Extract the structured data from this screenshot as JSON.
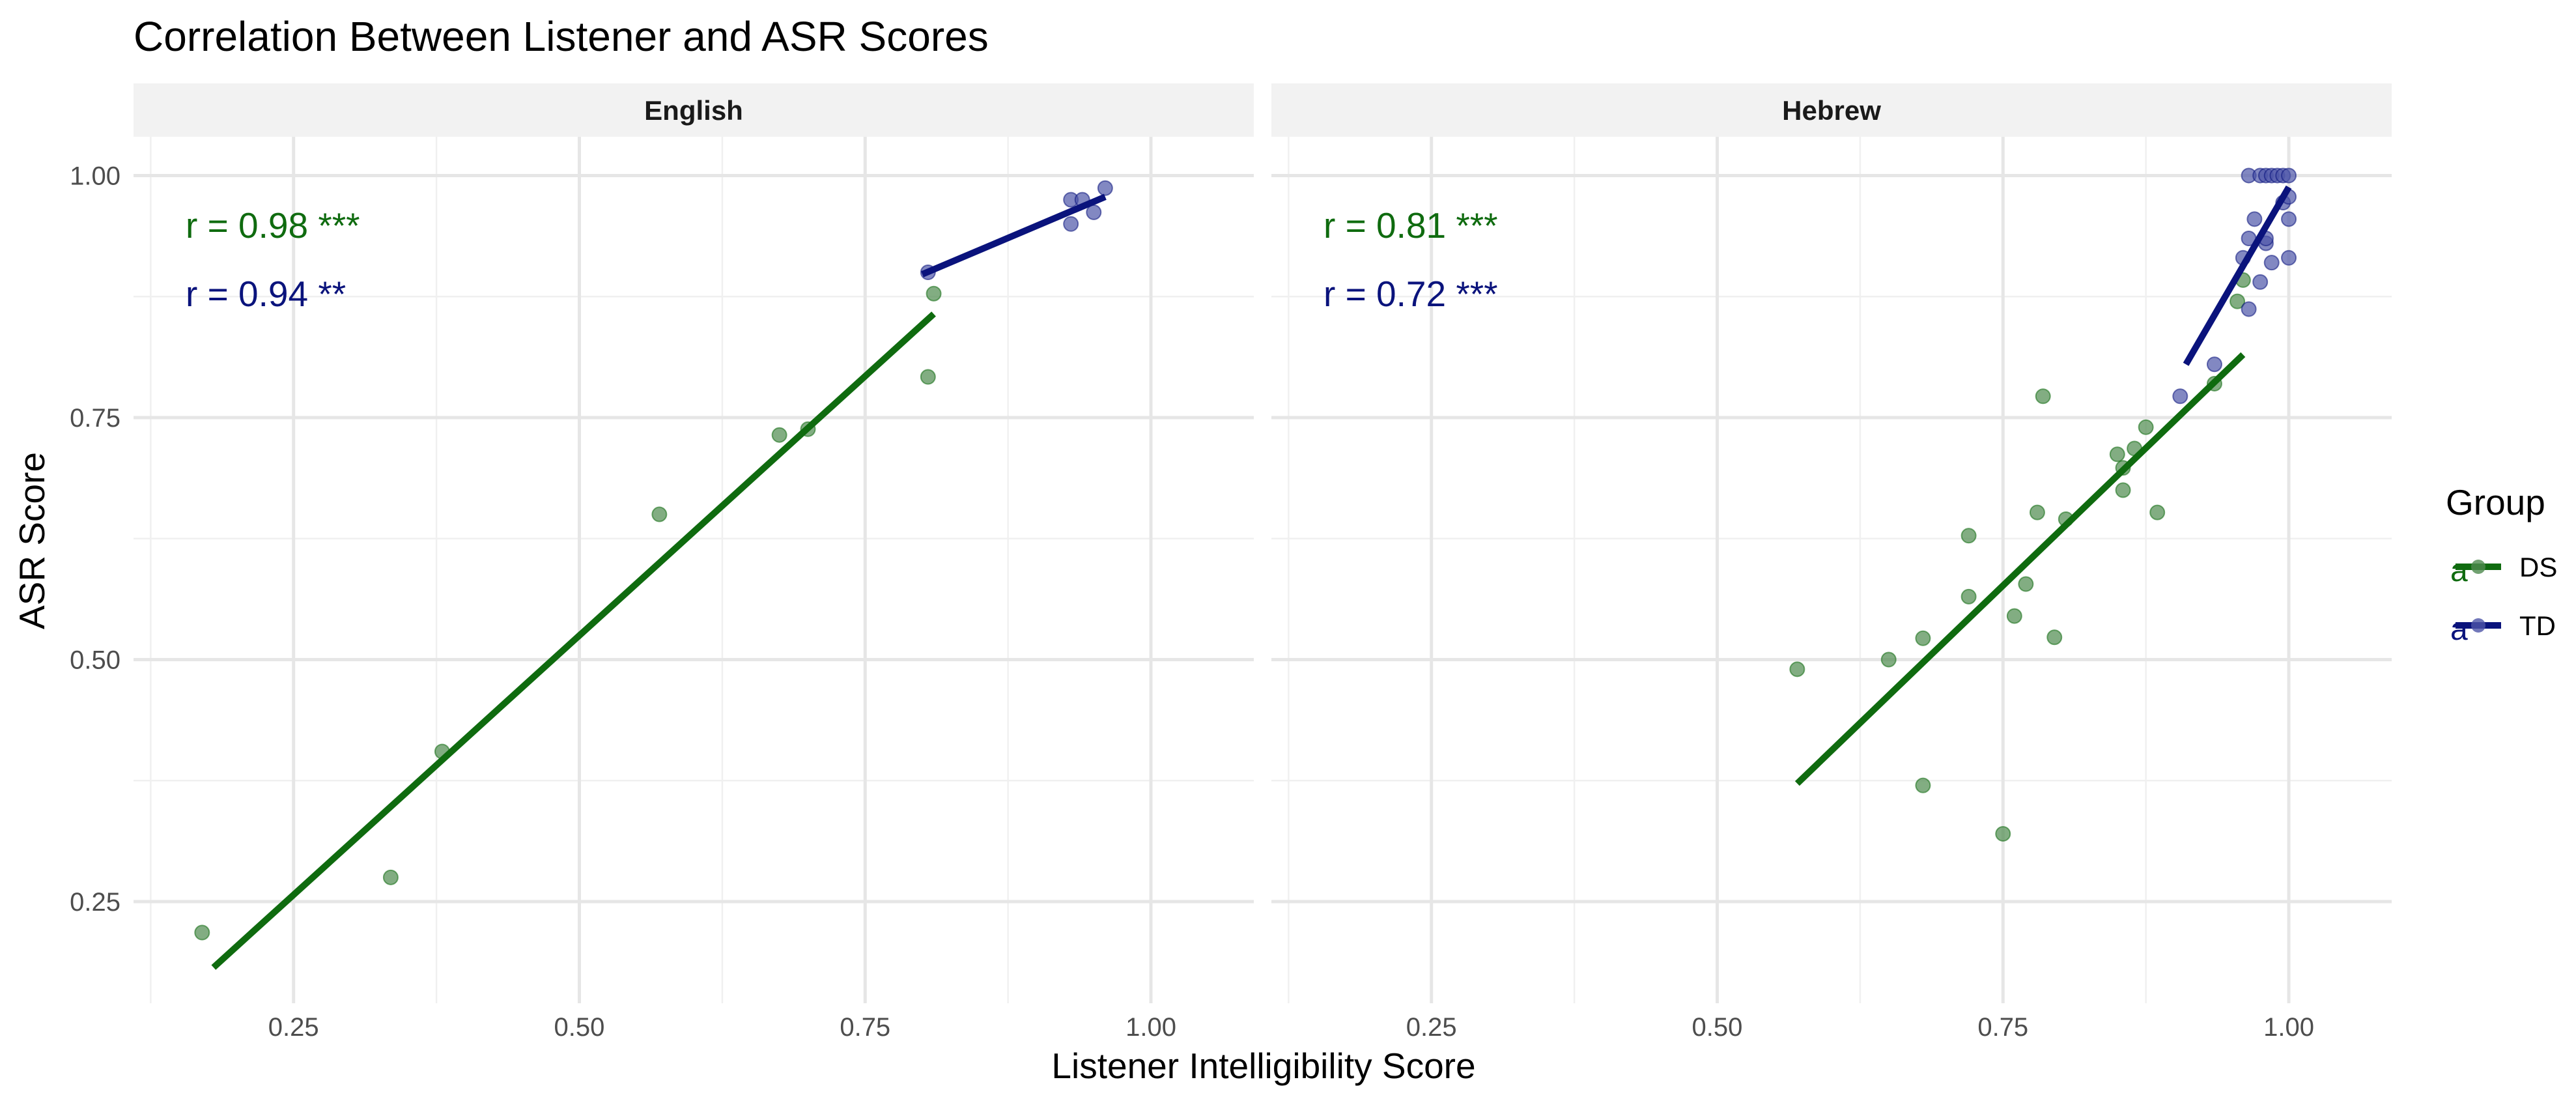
{
  "chart_data": {
    "type": "scatter",
    "title": "Correlation Between Listener and ASR Scores",
    "xlabel": "Listener Intelligibility Score",
    "ylabel": "ASR Score",
    "xlim": [
      0.11,
      1.09
    ],
    "ylim": [
      0.145,
      1.04
    ],
    "x_ticks": [
      0.25,
      0.5,
      0.75,
      1.0
    ],
    "x_tick_labels": [
      "0.25",
      "0.50",
      "0.75",
      "1.00"
    ],
    "y_ticks": [
      0.25,
      0.5,
      0.75,
      1.0
    ],
    "y_tick_labels": [
      "0.25",
      "0.50",
      "0.75",
      "1.00"
    ],
    "grid": true,
    "legend": {
      "title": "Group",
      "position": "right",
      "glyph": "a",
      "entries": [
        {
          "label": "DS",
          "color": "#0f6b0f"
        },
        {
          "label": "TD",
          "color": "#0a137c"
        }
      ]
    },
    "colors": {
      "DS": "#0f6b0f",
      "TD": "#0a137c",
      "DS_point": "#4d8a4d",
      "TD_point": "#4d55a8"
    },
    "panels": [
      {
        "label": "English",
        "annotations": [
          {
            "group": "DS",
            "text": "r = 0.98 ***"
          },
          {
            "group": "TD",
            "text": "r = 0.94 **"
          }
        ],
        "series": [
          {
            "name": "DS",
            "points": [
              [
                0.17,
                0.218
              ],
              [
                0.335,
                0.275
              ],
              [
                0.38,
                0.405
              ],
              [
                0.57,
                0.65
              ],
              [
                0.675,
                0.732
              ],
              [
                0.7,
                0.738
              ],
              [
                0.805,
                0.792
              ],
              [
                0.81,
                0.878
              ]
            ],
            "fit": [
              [
                0.18,
                0.182
              ],
              [
                0.81,
                0.857
              ]
            ]
          },
          {
            "name": "TD",
            "points": [
              [
                0.805,
                0.9
              ],
              [
                0.93,
                0.975
              ],
              [
                0.93,
                0.95
              ],
              [
                0.94,
                0.975
              ],
              [
                0.95,
                0.962
              ],
              [
                0.96,
                0.987
              ]
            ],
            "fit": [
              [
                0.8,
                0.898
              ],
              [
                0.96,
                0.978
              ]
            ]
          }
        ]
      },
      {
        "label": "Hebrew",
        "annotations": [
          {
            "group": "DS",
            "text": "r = 0.81 ***"
          },
          {
            "group": "TD",
            "text": "r = 0.72 ***"
          }
        ],
        "series": [
          {
            "name": "DS",
            "points": [
              [
                0.57,
                0.49
              ],
              [
                0.65,
                0.5
              ],
              [
                0.68,
                0.522
              ],
              [
                0.68,
                0.37
              ],
              [
                0.72,
                0.628
              ],
              [
                0.72,
                0.565
              ],
              [
                0.75,
                0.32
              ],
              [
                0.76,
                0.545
              ],
              [
                0.77,
                0.578
              ],
              [
                0.78,
                0.652
              ],
              [
                0.785,
                0.772
              ],
              [
                0.795,
                0.523
              ],
              [
                0.805,
                0.645
              ],
              [
                0.85,
                0.712
              ],
              [
                0.855,
                0.675
              ],
              [
                0.855,
                0.698
              ],
              [
                0.865,
                0.718
              ],
              [
                0.875,
                0.74
              ],
              [
                0.885,
                0.652
              ],
              [
                0.935,
                0.785
              ],
              [
                0.955,
                0.87
              ],
              [
                0.96,
                0.892
              ]
            ],
            "fit": [
              [
                0.57,
                0.372
              ],
              [
                0.96,
                0.815
              ]
            ]
          },
          {
            "name": "TD",
            "points": [
              [
                0.905,
                0.772
              ],
              [
                0.935,
                0.805
              ],
              [
                0.96,
                0.915
              ],
              [
                0.965,
                0.862
              ],
              [
                0.965,
                0.935
              ],
              [
                0.97,
                0.955
              ],
              [
                0.975,
                0.89
              ],
              [
                0.98,
                0.93
              ],
              [
                0.98,
                0.935
              ],
              [
                0.985,
                0.91
              ],
              [
                0.995,
                0.972
              ],
              [
                1.0,
                0.915
              ],
              [
                1.0,
                0.955
              ],
              [
                1.0,
                0.978
              ],
              [
                0.965,
                1.0
              ],
              [
                0.975,
                1.0
              ],
              [
                0.98,
                1.0
              ],
              [
                0.985,
                1.0
              ],
              [
                0.99,
                1.0
              ],
              [
                0.995,
                1.0
              ],
              [
                1.0,
                1.0
              ]
            ],
            "fit": [
              [
                0.91,
                0.805
              ],
              [
                1.0,
                0.988
              ]
            ]
          }
        ]
      }
    ]
  }
}
